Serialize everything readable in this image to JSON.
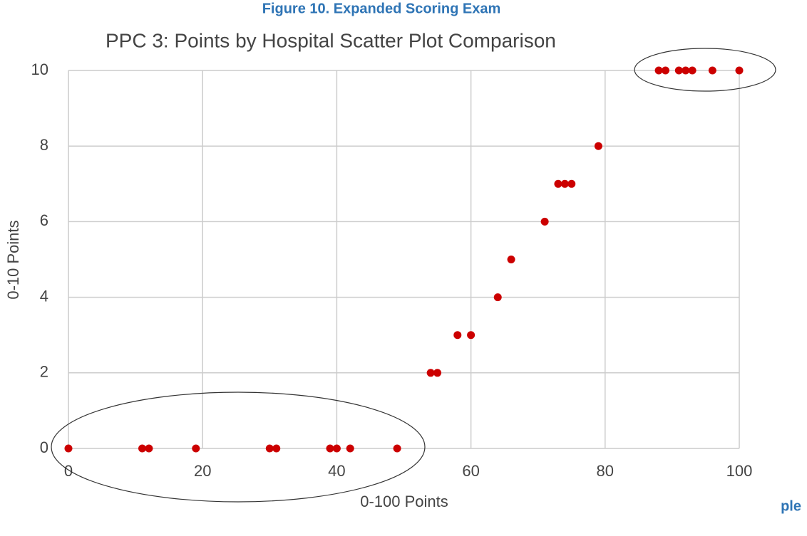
{
  "caption": "Figure 10.  Expanded Scoring Exam",
  "fragment": "ple",
  "chart_data": {
    "type": "scatter",
    "title": "PPC 3: Points by Hospital Scatter Plot Comparison",
    "xlabel": "0-100 Points",
    "ylabel": "0-10 Points",
    "x": [
      0,
      11,
      12,
      19,
      30,
      31,
      39,
      40,
      42,
      49,
      54,
      55,
      58,
      60,
      64,
      66,
      71,
      73,
      74,
      75,
      79,
      88,
      89,
      91,
      92,
      93,
      96,
      100
    ],
    "values": [
      0,
      0,
      0,
      0,
      0,
      0,
      0,
      0,
      0,
      0,
      2,
      2,
      3,
      3,
      4,
      5,
      6,
      7,
      7,
      7,
      8,
      10,
      10,
      10,
      10,
      10,
      10,
      10
    ],
    "color": "#cc0000",
    "xlim": [
      0,
      100
    ],
    "ylim": [
      0,
      10
    ],
    "xticks": [
      0,
      20,
      40,
      60,
      80,
      100
    ],
    "yticks": [
      0,
      2,
      4,
      6,
      8,
      10
    ],
    "grid": true
  }
}
